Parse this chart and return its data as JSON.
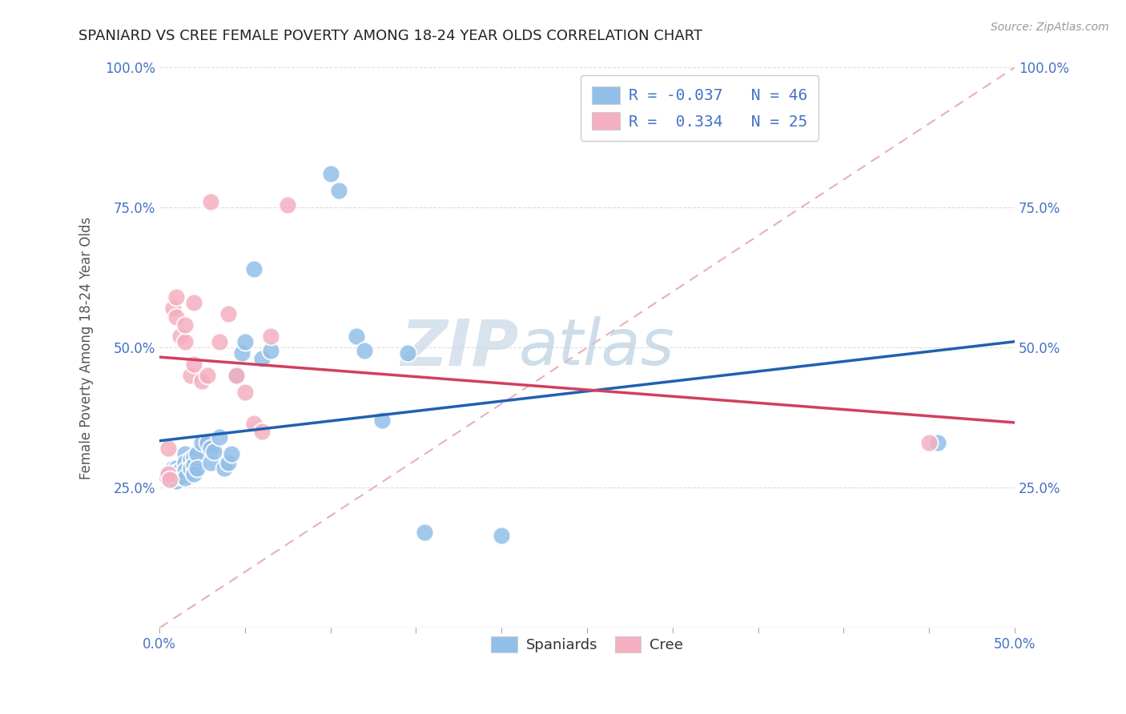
{
  "title": "SPANIARD VS CREE FEMALE POVERTY AMONG 18-24 YEAR OLDS CORRELATION CHART",
  "source": "Source: ZipAtlas.com",
  "ylabel": "Female Poverty Among 18-24 Year Olds",
  "xlim": [
    0.0,
    0.5
  ],
  "ylim": [
    0.0,
    1.0
  ],
  "xticks": [
    0.0,
    0.05,
    0.1,
    0.15,
    0.2,
    0.25,
    0.3,
    0.35,
    0.4,
    0.45,
    0.5
  ],
  "yticks": [
    0.0,
    0.25,
    0.5,
    0.75,
    1.0
  ],
  "spaniards_color": "#92bfe8",
  "cree_color": "#f4afc0",
  "spaniards_R": -0.037,
  "spaniards_N": 46,
  "cree_R": 0.334,
  "cree_N": 25,
  "trend_blue": "#2060b0",
  "trend_pink": "#d04060",
  "ref_line_color": "#e8b0b8",
  "watermark_zip": "ZIP",
  "watermark_atlas": "atlas",
  "spaniards_x": [
    0.005,
    0.005,
    0.008,
    0.008,
    0.008,
    0.01,
    0.01,
    0.01,
    0.01,
    0.012,
    0.012,
    0.015,
    0.015,
    0.015,
    0.015,
    0.018,
    0.018,
    0.02,
    0.02,
    0.02,
    0.022,
    0.022,
    0.025,
    0.028,
    0.03,
    0.03,
    0.032,
    0.035,
    0.038,
    0.04,
    0.042,
    0.045,
    0.048,
    0.05,
    0.055,
    0.06,
    0.065,
    0.1,
    0.105,
    0.115,
    0.12,
    0.13,
    0.145,
    0.155,
    0.2,
    0.455
  ],
  "spaniards_y": [
    0.27,
    0.265,
    0.285,
    0.275,
    0.268,
    0.285,
    0.278,
    0.27,
    0.262,
    0.28,
    0.27,
    0.31,
    0.295,
    0.28,
    0.268,
    0.3,
    0.285,
    0.305,
    0.29,
    0.275,
    0.31,
    0.285,
    0.33,
    0.33,
    0.32,
    0.295,
    0.315,
    0.34,
    0.285,
    0.295,
    0.31,
    0.45,
    0.49,
    0.51,
    0.64,
    0.48,
    0.495,
    0.81,
    0.78,
    0.52,
    0.495,
    0.37,
    0.49,
    0.17,
    0.165,
    0.33
  ],
  "cree_x": [
    0.004,
    0.005,
    0.005,
    0.006,
    0.008,
    0.01,
    0.01,
    0.012,
    0.015,
    0.015,
    0.018,
    0.02,
    0.02,
    0.025,
    0.028,
    0.03,
    0.035,
    0.04,
    0.045,
    0.05,
    0.055,
    0.06,
    0.065,
    0.075,
    0.45
  ],
  "cree_y": [
    0.27,
    0.275,
    0.32,
    0.265,
    0.57,
    0.59,
    0.555,
    0.52,
    0.51,
    0.54,
    0.45,
    0.47,
    0.58,
    0.44,
    0.45,
    0.76,
    0.51,
    0.56,
    0.45,
    0.42,
    0.365,
    0.35,
    0.52,
    0.755,
    0.33
  ]
}
